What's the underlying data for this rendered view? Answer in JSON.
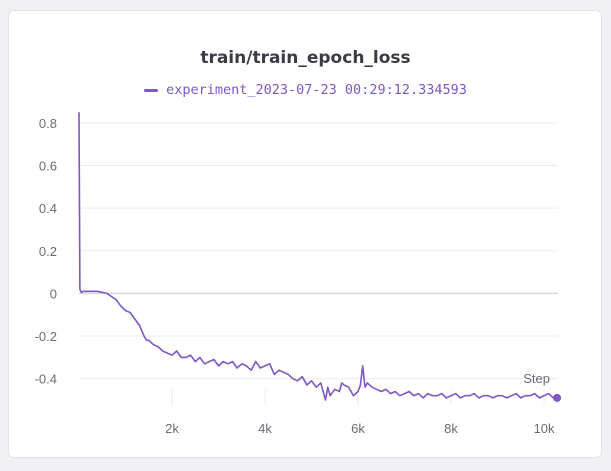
{
  "panel": {
    "title": "train/train_epoch_loss"
  },
  "colors": {
    "series": "#7e57c2",
    "grid": "#ececf0",
    "zero_line": "#d6d6db",
    "tick_text": "#6b6b76"
  },
  "chart_data": {
    "type": "line",
    "title": "train/train_epoch_loss",
    "xlabel": "Step",
    "ylabel": "",
    "xlim": [
      0,
      10300
    ],
    "ylim": [
      -0.5,
      0.87
    ],
    "grid": true,
    "legend_placement": "top-center",
    "x_ticks": [
      {
        "value": 2000,
        "label": "2k"
      },
      {
        "value": 4000,
        "label": "4k"
      },
      {
        "value": 6000,
        "label": "6k"
      },
      {
        "value": 8000,
        "label": "8k"
      },
      {
        "value": 10000,
        "label": "10k"
      }
    ],
    "y_ticks": [
      {
        "value": 0.8,
        "label": "0.8"
      },
      {
        "value": 0.6,
        "label": "0.6"
      },
      {
        "value": 0.4,
        "label": "0.4"
      },
      {
        "value": 0.2,
        "label": "0.2"
      },
      {
        "value": 0,
        "label": "0"
      },
      {
        "value": -0.2,
        "label": "-0.2"
      },
      {
        "value": -0.4,
        "label": "-0.4"
      }
    ],
    "series": [
      {
        "name": "experiment_2023-07-23 00:29:12.334593",
        "x": [
          0,
          20,
          50,
          100,
          200,
          400,
          600,
          800,
          900,
          1000,
          1100,
          1200,
          1300,
          1400,
          1450,
          1500,
          1600,
          1700,
          1800,
          1900,
          2000,
          2100,
          2200,
          2300,
          2400,
          2500,
          2600,
          2700,
          2800,
          2900,
          3000,
          3100,
          3200,
          3300,
          3400,
          3500,
          3600,
          3700,
          3800,
          3900,
          4000,
          4100,
          4200,
          4300,
          4400,
          4500,
          4600,
          4700,
          4800,
          4900,
          5000,
          5100,
          5200,
          5300,
          5350,
          5400,
          5500,
          5600,
          5650,
          5700,
          5800,
          5900,
          6000,
          6050,
          6100,
          6150,
          6200,
          6300,
          6400,
          6500,
          6600,
          6700,
          6800,
          6900,
          7000,
          7100,
          7200,
          7300,
          7400,
          7500,
          7600,
          7700,
          7800,
          7900,
          8000,
          8100,
          8200,
          8300,
          8400,
          8500,
          8600,
          8700,
          8800,
          8900,
          9000,
          9100,
          9200,
          9300,
          9400,
          9500,
          9600,
          9700,
          9800,
          9900,
          10000,
          10100,
          10200,
          10280
        ],
        "values": [
          0.85,
          0.02,
          0.005,
          0.01,
          0.01,
          0.01,
          0.0,
          -0.03,
          -0.06,
          -0.08,
          -0.09,
          -0.12,
          -0.15,
          -0.2,
          -0.22,
          -0.22,
          -0.24,
          -0.25,
          -0.27,
          -0.28,
          -0.29,
          -0.27,
          -0.3,
          -0.3,
          -0.29,
          -0.32,
          -0.3,
          -0.33,
          -0.32,
          -0.31,
          -0.34,
          -0.32,
          -0.33,
          -0.32,
          -0.35,
          -0.33,
          -0.34,
          -0.36,
          -0.32,
          -0.35,
          -0.34,
          -0.33,
          -0.38,
          -0.36,
          -0.37,
          -0.38,
          -0.4,
          -0.41,
          -0.39,
          -0.43,
          -0.41,
          -0.44,
          -0.42,
          -0.5,
          -0.44,
          -0.48,
          -0.45,
          -0.46,
          -0.42,
          -0.43,
          -0.44,
          -0.48,
          -0.46,
          -0.43,
          -0.34,
          -0.44,
          -0.42,
          -0.44,
          -0.45,
          -0.46,
          -0.45,
          -0.47,
          -0.46,
          -0.48,
          -0.47,
          -0.46,
          -0.48,
          -0.47,
          -0.49,
          -0.47,
          -0.48,
          -0.48,
          -0.47,
          -0.49,
          -0.48,
          -0.47,
          -0.49,
          -0.48,
          -0.48,
          -0.47,
          -0.49,
          -0.48,
          -0.48,
          -0.49,
          -0.48,
          -0.48,
          -0.49,
          -0.48,
          -0.47,
          -0.49,
          -0.48,
          -0.48,
          -0.47,
          -0.49,
          -0.48,
          -0.47,
          -0.49,
          -0.49
        ]
      }
    ]
  }
}
